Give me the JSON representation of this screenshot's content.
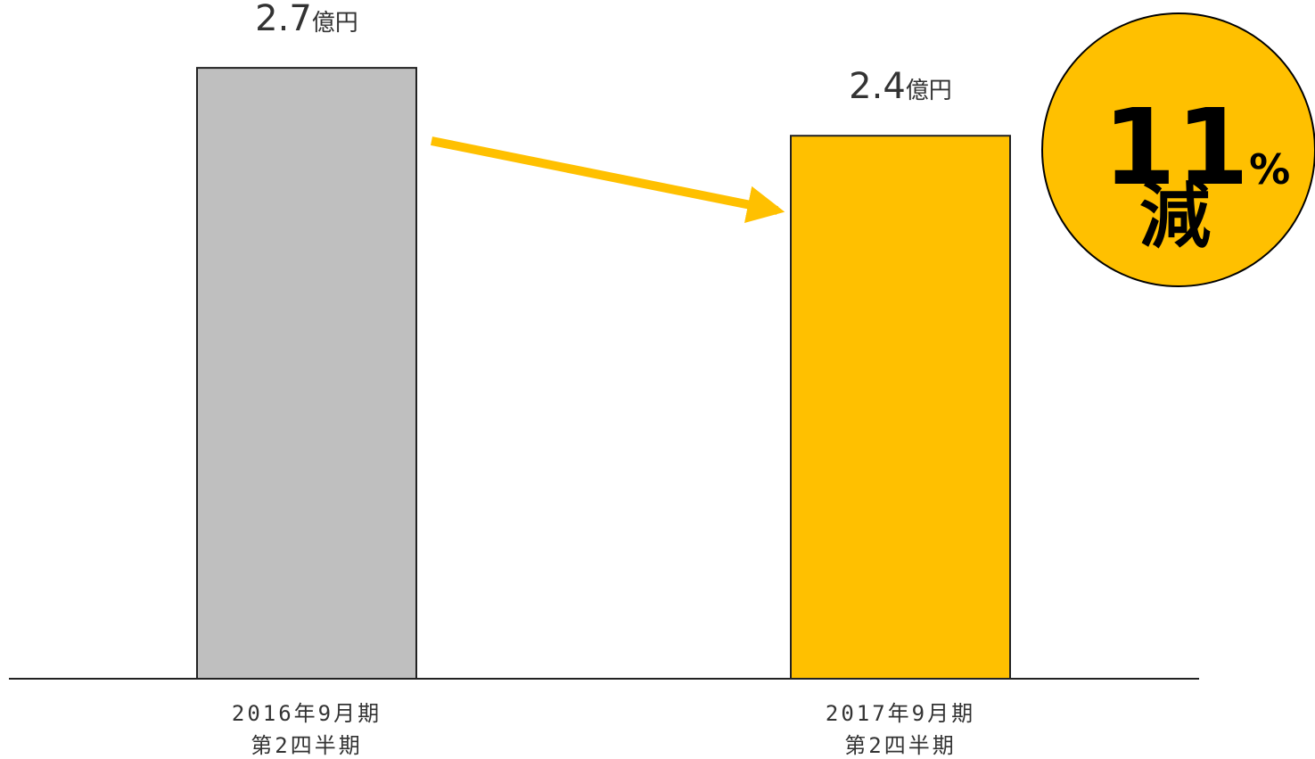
{
  "chart_data": {
    "type": "bar",
    "unit": "億円",
    "categories": [
      {
        "line1": "2016年9月期",
        "line2": "第2四半期"
      },
      {
        "line1": "2017年9月期",
        "line2": "第2四半期"
      }
    ],
    "values": [
      2.7,
      2.4
    ],
    "value_labels": [
      "2.7",
      "2.4"
    ],
    "bar_colors": [
      "#bfbfbf",
      "#ffc000"
    ],
    "bar_stroke": "#222222",
    "ylim": [
      0,
      3.0
    ],
    "grid": false,
    "legend": "none",
    "arrow_color": "#ffc000"
  },
  "badge": {
    "number": "11",
    "percent": "%",
    "word": "減",
    "color": "#ffc000"
  }
}
